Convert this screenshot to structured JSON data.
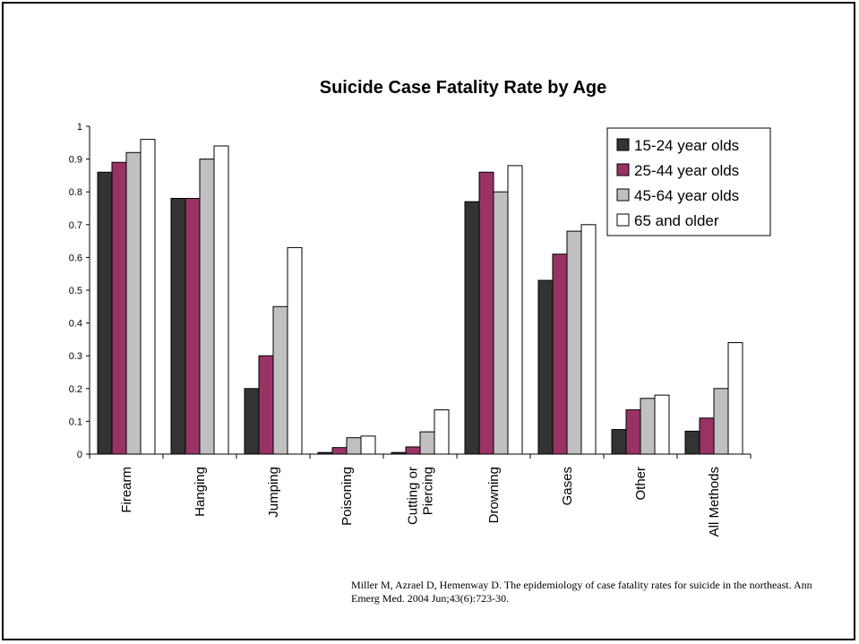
{
  "chart_data": {
    "type": "bar",
    "title": "Suicide Case Fatality Rate by Age",
    "xlabel": "",
    "ylabel": "",
    "ylim": [
      0,
      1
    ],
    "yticks": [
      "0",
      "0.1",
      "0.2",
      "0.3",
      "0.4",
      "0.5",
      "0.6",
      "0.7",
      "0.8",
      "0.9",
      "1"
    ],
    "categories": [
      [
        "Firearm"
      ],
      [
        "Hanging"
      ],
      [
        "Jumping"
      ],
      [
        "Poisoning"
      ],
      [
        "Cutting or",
        "Piercing"
      ],
      [
        "Drowning"
      ],
      [
        "Gases"
      ],
      [
        "Other"
      ],
      [
        "All Methods"
      ]
    ],
    "series": [
      {
        "name": "15-24 year olds",
        "color": "#333333",
        "values": [
          0.86,
          0.78,
          0.2,
          0.005,
          0.005,
          0.77,
          0.53,
          0.075,
          0.07
        ]
      },
      {
        "name": "25-44 year olds",
        "color": "#993366",
        "values": [
          0.89,
          0.78,
          0.3,
          0.02,
          0.022,
          0.86,
          0.61,
          0.135,
          0.11
        ]
      },
      {
        "name": "45-64 year olds",
        "color": "#C0C0C0",
        "values": [
          0.92,
          0.9,
          0.45,
          0.05,
          0.068,
          0.8,
          0.68,
          0.17,
          0.2
        ]
      },
      {
        "name": "65 and older",
        "color": "#FFFFFF",
        "values": [
          0.96,
          0.94,
          0.63,
          0.055,
          0.135,
          0.88,
          0.7,
          0.18,
          0.34
        ]
      }
    ],
    "legend_position": "top-right",
    "grid": false
  },
  "citation": "Miller M, Azrael D, Hemenway D. The epidemiology of case fatality rates for suicide in the northeast. Ann Emerg Med. 2004 Jun;43(6):723-30."
}
